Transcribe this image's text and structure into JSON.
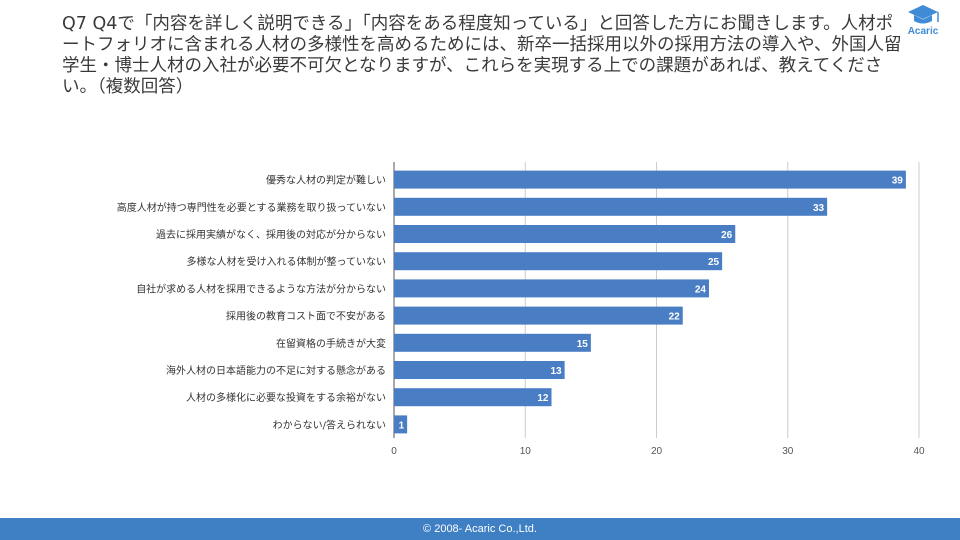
{
  "question": "Q7 Q4で「内容を詳しく説明できる」「内容をある程度知っている」と回答した方にお聞きします。人材ポートフォリオに含まれる人材の多様性を高めるためには、新卒一括採用以外の採用方法の導入や、外国人留学生・博士人材の入社が必要不可欠となりますが、これらを実現する上での課題があれば、教えてください。（複数回答）",
  "logo": {
    "text": "Acaric",
    "icon": "graduation-cap-icon"
  },
  "footer": "© 2008- Acaric Co.,Ltd.",
  "colors": {
    "bar": "#4a7ec4",
    "footer": "#3f7fc4",
    "logo": "#3f8bd6"
  },
  "chart_data": {
    "type": "bar",
    "orientation": "horizontal",
    "categories": [
      "優秀な人材の判定が難しい",
      "高度人材が持つ専門性を必要とする業務を取り扱っていない",
      "過去に採用実績がなく、採用後の対応が分からない",
      "多様な人材を受け入れる体制が整っていない",
      "自社が求める人材を採用できるような方法が分からない",
      "採用後の教育コスト面で不安がある",
      "在留資格の手続きが大変",
      "海外人材の日本語能力の不足に対する懸念がある",
      "人材の多様化に必要な投資をする余裕がない",
      "わからない/答えられない"
    ],
    "values": [
      39,
      33,
      26,
      25,
      24,
      22,
      15,
      13,
      12,
      1
    ],
    "xlim": [
      0,
      40
    ],
    "xticks": [
      0,
      10,
      20,
      30,
      40
    ],
    "grid": true,
    "data_labels": true
  }
}
